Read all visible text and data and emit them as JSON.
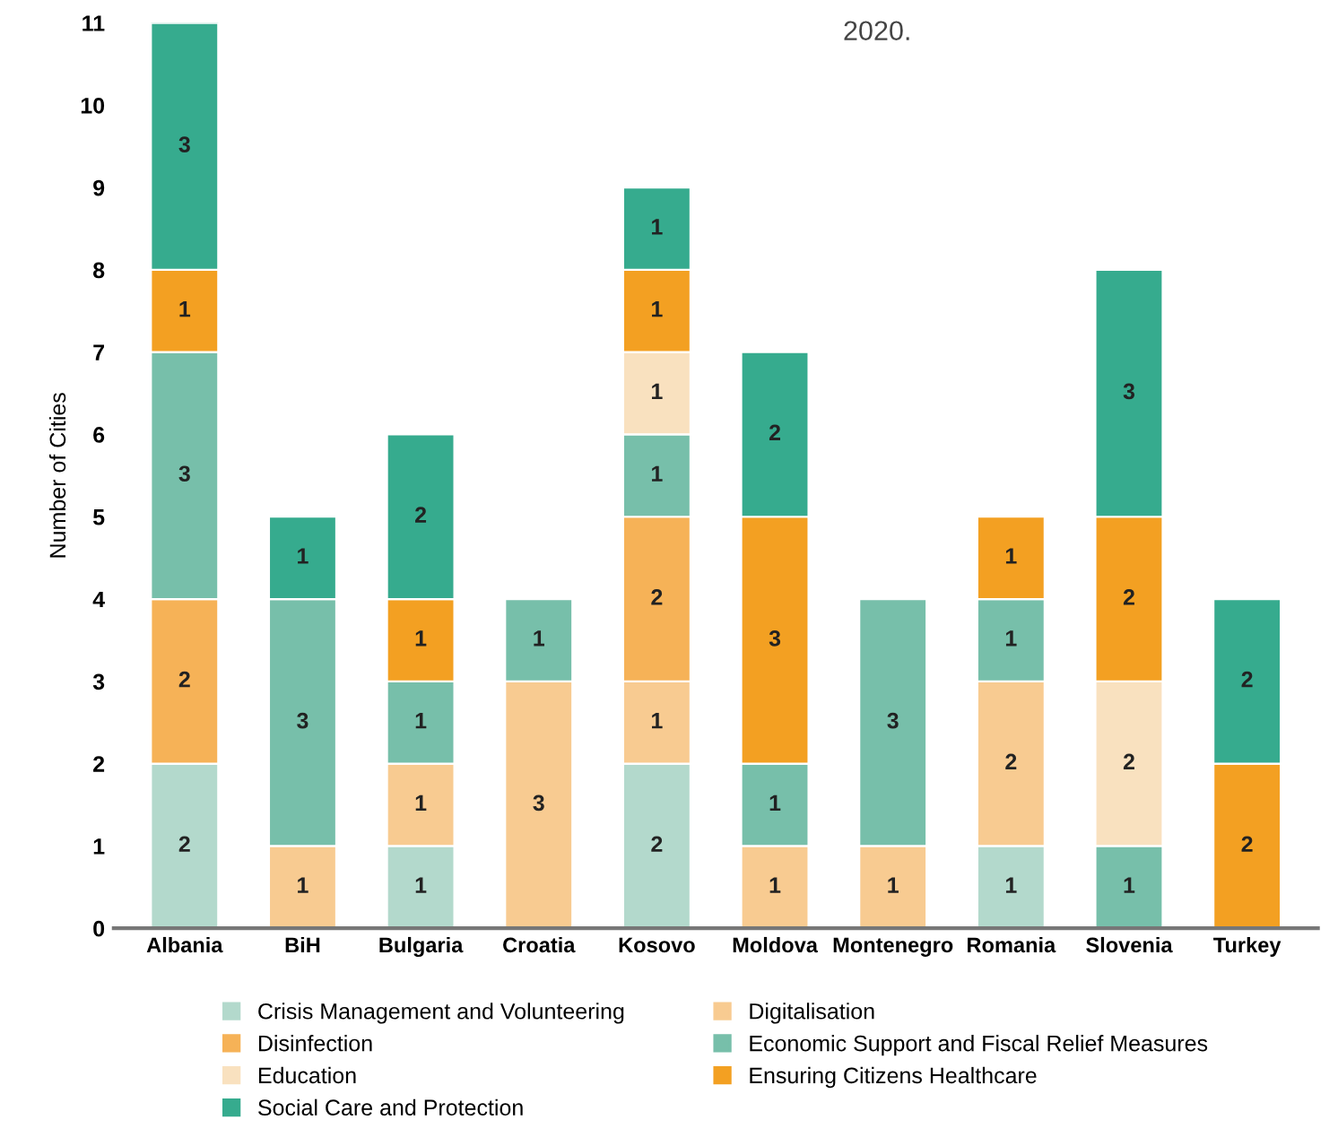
{
  "chart_data": {
    "type": "bar",
    "stacked": true,
    "ylabel": "Number of Cities",
    "categories": [
      "Albania",
      "BiH",
      "Bulgaria",
      "Croatia",
      "Kosovo",
      "Moldova",
      "Montenegro",
      "Romania",
      "Slovenia",
      "Turkey"
    ],
    "series": [
      {
        "name": "Crisis Management and Volunteering",
        "color": "#b3d9cc",
        "values": [
          2,
          null,
          1,
          null,
          2,
          null,
          null,
          1,
          null,
          null
        ]
      },
      {
        "name": "Digitalisation",
        "color": "#f8cb91",
        "values": [
          null,
          1,
          1,
          3,
          1,
          1,
          1,
          2,
          null,
          null
        ]
      },
      {
        "name": "Disinfection",
        "color": "#f6b257",
        "values": [
          2,
          null,
          null,
          null,
          2,
          null,
          null,
          null,
          null,
          null
        ]
      },
      {
        "name": "Economic Support and Fiscal Relief Measures",
        "color": "#77bfaa",
        "values": [
          3,
          3,
          1,
          1,
          1,
          1,
          3,
          1,
          1,
          null
        ]
      },
      {
        "name": "Education",
        "color": "#f9e1bf",
        "values": [
          null,
          null,
          null,
          null,
          1,
          null,
          null,
          null,
          2,
          null
        ]
      },
      {
        "name": "Ensuring Citizens Healthcare",
        "color": "#f3a022",
        "values": [
          1,
          null,
          1,
          null,
          1,
          3,
          null,
          1,
          2,
          2
        ]
      },
      {
        "name": "Social Care and Protection",
        "color": "#36ab8e",
        "values": [
          3,
          1,
          2,
          null,
          1,
          2,
          null,
          null,
          3,
          2
        ]
      }
    ],
    "ylim": [
      0,
      11
    ],
    "yticks": [
      0,
      1,
      2,
      3,
      4,
      5,
      6,
      7,
      8,
      9,
      10,
      11
    ],
    "data_labels": true,
    "grid": false,
    "legend": "bottom",
    "annotations": [
      "2020."
    ]
  }
}
